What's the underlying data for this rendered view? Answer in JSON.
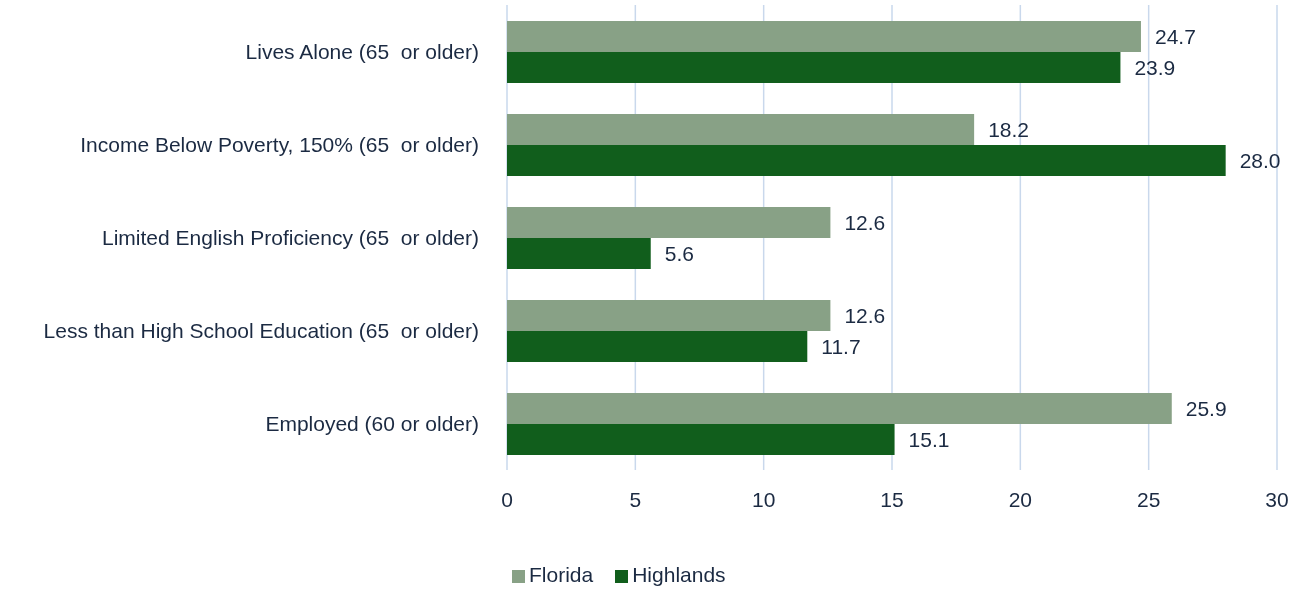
{
  "chart_data": {
    "type": "bar",
    "orientation": "horizontal",
    "categories": [
      "Lives Alone (65  or older)",
      "Income Below Poverty, 150% (65  or older)",
      "Limited English Proficiency (65  or older)",
      "Less than High School Education (65  or older)",
      "Employed (60 or older)"
    ],
    "series": [
      {
        "name": "Florida",
        "color": "#88a186",
        "values": [
          24.7,
          18.2,
          12.6,
          12.6,
          25.9
        ],
        "value_labels": [
          "24.7",
          "18.2",
          "12.6",
          "12.6",
          "25.9"
        ]
      },
      {
        "name": "Highlands",
        "color": "#115e1c",
        "values": [
          23.9,
          28.0,
          5.6,
          11.7,
          15.1
        ],
        "value_labels": [
          "23.9",
          "28.0",
          "5.6",
          "11.7",
          "15.1"
        ]
      }
    ],
    "xlim": [
      0,
      30
    ],
    "xticks": [
      0,
      5,
      10,
      15,
      20,
      25,
      30
    ],
    "grid": "x",
    "legend": "bottom"
  }
}
